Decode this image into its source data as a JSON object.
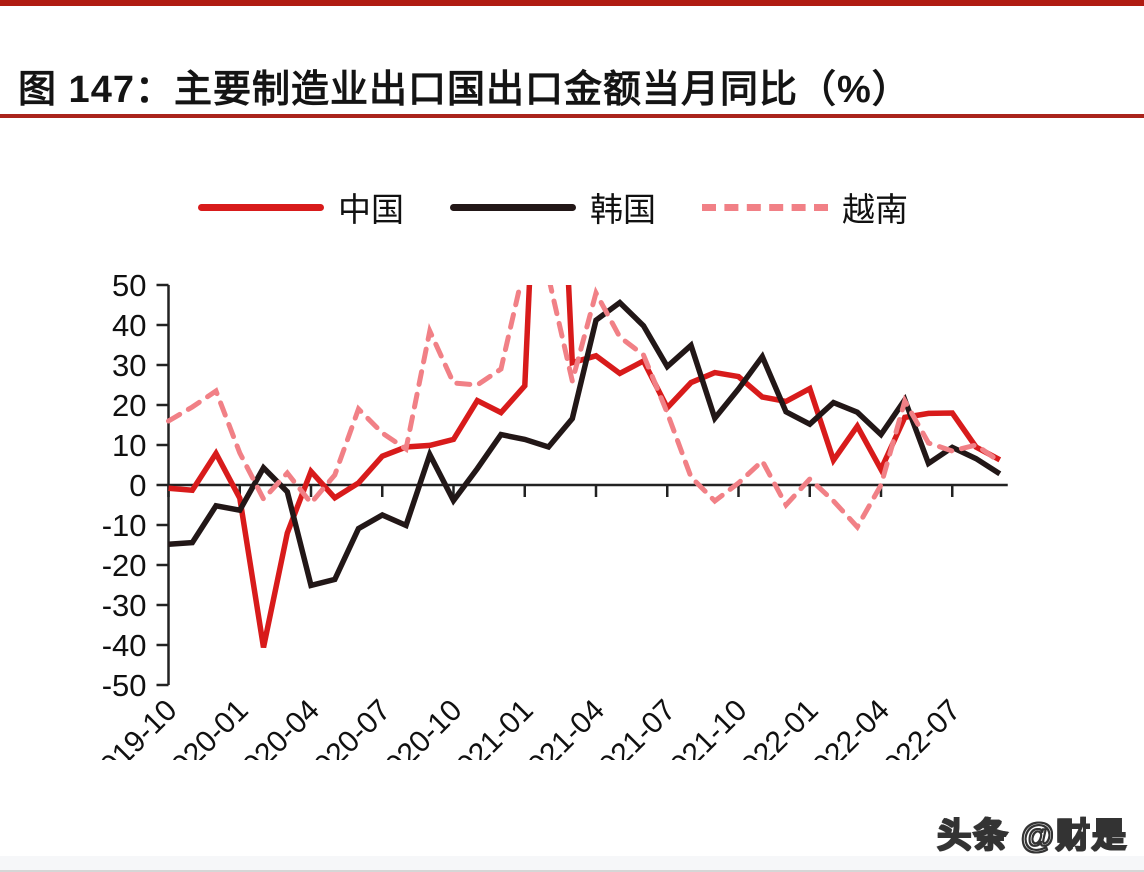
{
  "page": {
    "title": "图 147：主要制造业出口国出口金额当月同比（%）",
    "watermark": "头条 @财是"
  },
  "colors": {
    "top_accent_bar": "#b01c12",
    "title_rule": "#aa241c",
    "axis": "#222222",
    "china": "#d81b1b",
    "korea": "#221717",
    "vietnam": "#f18086"
  },
  "chart_data": {
    "type": "line",
    "title": "主要制造业出口国出口金额当月同比（%）",
    "categories": [
      "2019-10",
      "2019-11",
      "2019-12",
      "2020-01",
      "2020-02",
      "2020-03",
      "2020-04",
      "2020-05",
      "2020-06",
      "2020-07",
      "2020-08",
      "2020-09",
      "2020-10",
      "2020-11",
      "2020-12",
      "2021-01",
      "2021-02",
      "2021-03",
      "2021-04",
      "2021-05",
      "2021-06",
      "2021-07",
      "2021-08",
      "2021-09",
      "2021-10",
      "2021-11",
      "2021-12",
      "2022-01",
      "2022-02",
      "2022-03",
      "2022-04",
      "2022-05",
      "2022-06",
      "2022-07",
      "2022-08",
      "2022-09"
    ],
    "series": [
      {
        "name": "中国",
        "style": "solid",
        "color": "#d81b1b",
        "values": [
          -0.8,
          -1.3,
          7.9,
          -3.3,
          -40.6,
          -12,
          3.4,
          -3.2,
          0.5,
          7.2,
          9.5,
          9.9,
          11.4,
          21.1,
          18.1,
          24.8,
          155,
          30.6,
          32.3,
          27.9,
          31,
          19.3,
          25.6,
          28.1,
          27.1,
          22,
          20.9,
          24.1,
          6.2,
          14.7,
          3.9,
          16.9,
          17.9,
          18,
          9.5,
          6.3
        ]
      },
      {
        "name": "韩国",
        "style": "solid",
        "color": "#221717",
        "values": [
          -14.8,
          -14.4,
          -5.2,
          -6.3,
          4.3,
          -1.7,
          -25.1,
          -23.6,
          -10.9,
          -7.5,
          -10.1,
          7.6,
          -3.9,
          4.1,
          12.6,
          11.4,
          9.5,
          16.6,
          41.2,
          45.6,
          39.8,
          29.6,
          34.9,
          16.7,
          24,
          32.1,
          18.3,
          15.2,
          20.6,
          18.2,
          12.6,
          21.3,
          5.4,
          9.4,
          6.6,
          2.8
        ]
      },
      {
        "name": "越南",
        "style": "dashed",
        "color": "#f18086",
        "values": [
          16,
          19.5,
          23.5,
          8,
          -3.5,
          3,
          -4.5,
          2.5,
          19,
          13,
          9,
          38.5,
          25.5,
          25,
          29,
          55,
          52,
          26,
          48,
          37,
          32.5,
          18,
          2,
          -4,
          0.5,
          6,
          -5,
          1.5,
          -4,
          -10.5,
          0,
          21,
          10.5,
          8.5,
          10,
          5.8
        ]
      }
    ],
    "ylim": [
      -50,
      50
    ],
    "ytick_step": 10,
    "ytick_labels": [
      "50",
      "40",
      "30",
      "20",
      "10",
      "0",
      "-10",
      "-20",
      "-30",
      "-40",
      "-50"
    ],
    "xtick_every": 3,
    "xtick_labels": [
      "2019-10",
      "2020-01",
      "2020-04",
      "2020-07",
      "2020-10",
      "2021-01",
      "2021-04",
      "2021-07",
      "2021-10",
      "2022-01",
      "2022-04",
      "2022-07"
    ],
    "grid": false,
    "legend_position": "top"
  }
}
